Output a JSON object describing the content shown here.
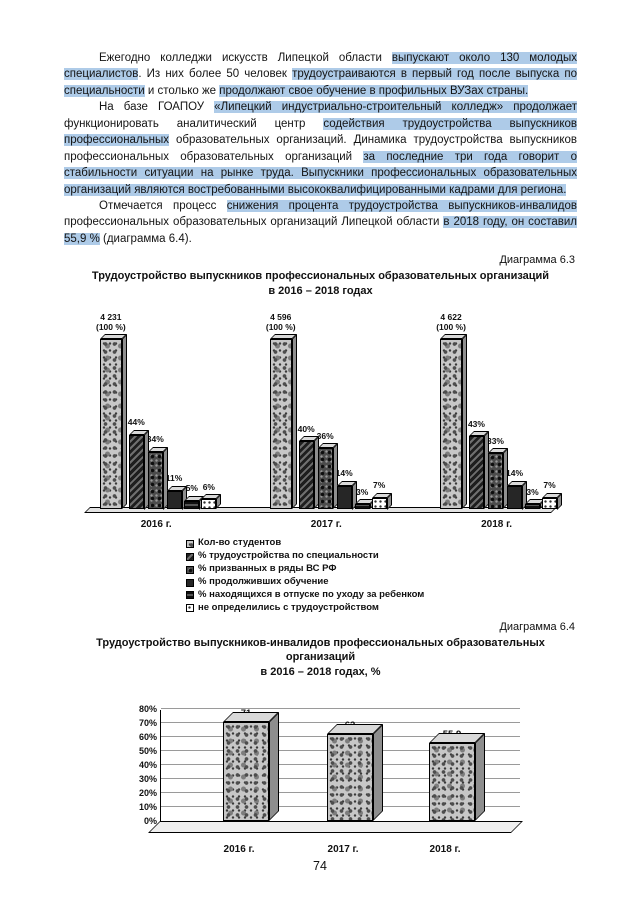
{
  "document": {
    "paragraphs": [
      {
        "segments": [
          {
            "t": "Ежегодно колледжи искусств Липецкой области ",
            "h": false
          },
          {
            "t": "выпускают около 130 молодых специалистов",
            "h": true
          },
          {
            "t": ". Из них более 50 человек ",
            "h": false
          },
          {
            "t": "трудоустраиваются в первый год после выпуска по специальности",
            "h": true
          },
          {
            "t": " и столько же ",
            "h": false
          },
          {
            "t": "продолжают свое обучение в профильных ВУЗах страны.",
            "h": true
          }
        ]
      },
      {
        "segments": [
          {
            "t": "На базе ГОАПОУ ",
            "h": false
          },
          {
            "t": "«Липецкий индустриально-строительный колледж» продолжает",
            "h": true
          },
          {
            "t": " функционировать аналитический центр ",
            "h": false
          },
          {
            "t": "содействия трудоустройства выпускников профессиональных",
            "h": true
          },
          {
            "t": " образовательных организаций. Динамика трудоустройства выпускников профессиональных образовательных организаций ",
            "h": false
          },
          {
            "t": "за последние три года говорит о стабильности ситуации на рынке труда. Выпускники профессиональных образовательных организаций являются востребованными высококвалифицированными кадрами для региона.",
            "h": true
          }
        ]
      },
      {
        "segments": [
          {
            "t": "Отмечается процесс ",
            "h": false
          },
          {
            "t": "снижения процента трудоустройства выпускников-инвалидов",
            "h": true
          },
          {
            "t": " профессиональных образовательных организаций Липецкой области ",
            "h": false
          },
          {
            "t": "в 2018 году, он составил 55,9 %",
            "h": true
          },
          {
            "t": " (диаграмма 6.4).",
            "h": false
          }
        ]
      }
    ],
    "captions": {
      "d63": "Диаграмма 6.3",
      "d64": "Диаграмма 6.4"
    },
    "page_number": "74"
  },
  "chart_data": [
    {
      "name": "diagram-6-3",
      "type": "bar",
      "title": "Трудоустройство выпускников профессиональных образовательных организаций",
      "title_line2": "в 2016 – 2018 годах",
      "categories": [
        "2016 г.",
        "2017 г.",
        "2018 г."
      ],
      "series": [
        {
          "name": "Кол-во студентов",
          "values": [
            100,
            100,
            100
          ],
          "counts": [
            4231,
            4596,
            4622
          ],
          "labels": [
            "4 231\n(100 %)",
            "4 596\n(100 %)",
            "4 622\n(100 %)"
          ]
        },
        {
          "name": "% трудоустройства по специальности",
          "values": [
            44,
            40,
            43
          ]
        },
        {
          "name": "% призванных в ряды ВС РФ",
          "values": [
            34,
            36,
            33
          ]
        },
        {
          "name": "% продолживших обучение",
          "values": [
            11,
            14,
            14
          ]
        },
        {
          "name": "% находящихся в отпуске по уходу за ребенком",
          "values": [
            5,
            3,
            3
          ]
        },
        {
          "name": "не определились с трудоустройством",
          "values": [
            6,
            7,
            7
          ]
        }
      ],
      "ylim": [
        0,
        100
      ],
      "grid": false,
      "legend_position": "bottom"
    },
    {
      "name": "diagram-6-4",
      "type": "bar",
      "title": "Трудоустройство выпускников-инвалидов профессиональных образовательных организаций",
      "title_line2": "в 2016 – 2018 годах, %",
      "categories": [
        "2016 г.",
        "2017 г.",
        "2018 г."
      ],
      "values": [
        71,
        62,
        55.9
      ],
      "labels": [
        "71",
        "62",
        "55,9"
      ],
      "yticks": [
        "0%",
        "10%",
        "20%",
        "30%",
        "40%",
        "50%",
        "60%",
        "70%",
        "80%"
      ],
      "ylim": [
        0,
        80
      ],
      "grid": true
    }
  ]
}
